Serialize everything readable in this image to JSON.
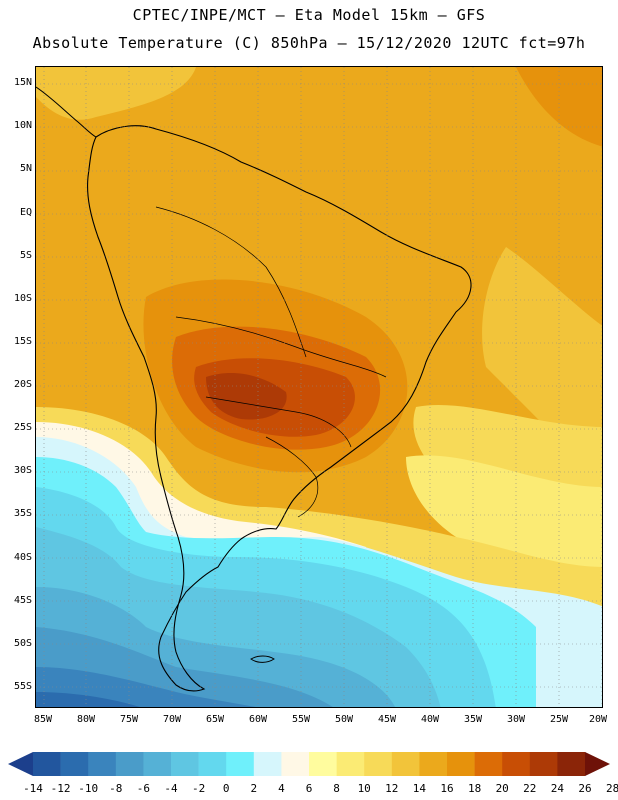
{
  "header": {
    "line1": "CPTEC/INPE/MCT –  Eta Model 15km – GFS",
    "line2": "Absolute Temperature (C) 850hPa – 15/12/2020 12UTC fct=97h"
  },
  "map": {
    "lat_labels": [
      "15N",
      "10N",
      "5N",
      "EQ",
      "5S",
      "10S",
      "15S",
      "20S",
      "25S",
      "30S",
      "35S",
      "40S",
      "45S",
      "50S",
      "55S"
    ],
    "lon_labels": [
      "85W",
      "80W",
      "75W",
      "70W",
      "65W",
      "60W",
      "55W",
      "50W",
      "45W",
      "40W",
      "35W",
      "30W",
      "25W",
      "20W"
    ]
  },
  "colorbar": {
    "labels": [
      "-14",
      "-12",
      "-10",
      "-8",
      "-6",
      "-4",
      "-2",
      "0",
      "2",
      "4",
      "6",
      "8",
      "10",
      "12",
      "14",
      "16",
      "18",
      "20",
      "22",
      "24",
      "26",
      "28"
    ],
    "colors": [
      "#1c3f8c",
      "#22569e",
      "#2b6cae",
      "#3a84bd",
      "#4a9cc9",
      "#55b1d6",
      "#5fc6e2",
      "#63d8ee",
      "#6ff0fb",
      "#d6f6fc",
      "#fff8e6",
      "#fffc9e",
      "#fbeb74",
      "#f7da58",
      "#f2c43a",
      "#eba91c",
      "#e6920c",
      "#dc6c06",
      "#c84e05",
      "#ad3a06",
      "#8b2508",
      "#6e1208"
    ]
  }
}
